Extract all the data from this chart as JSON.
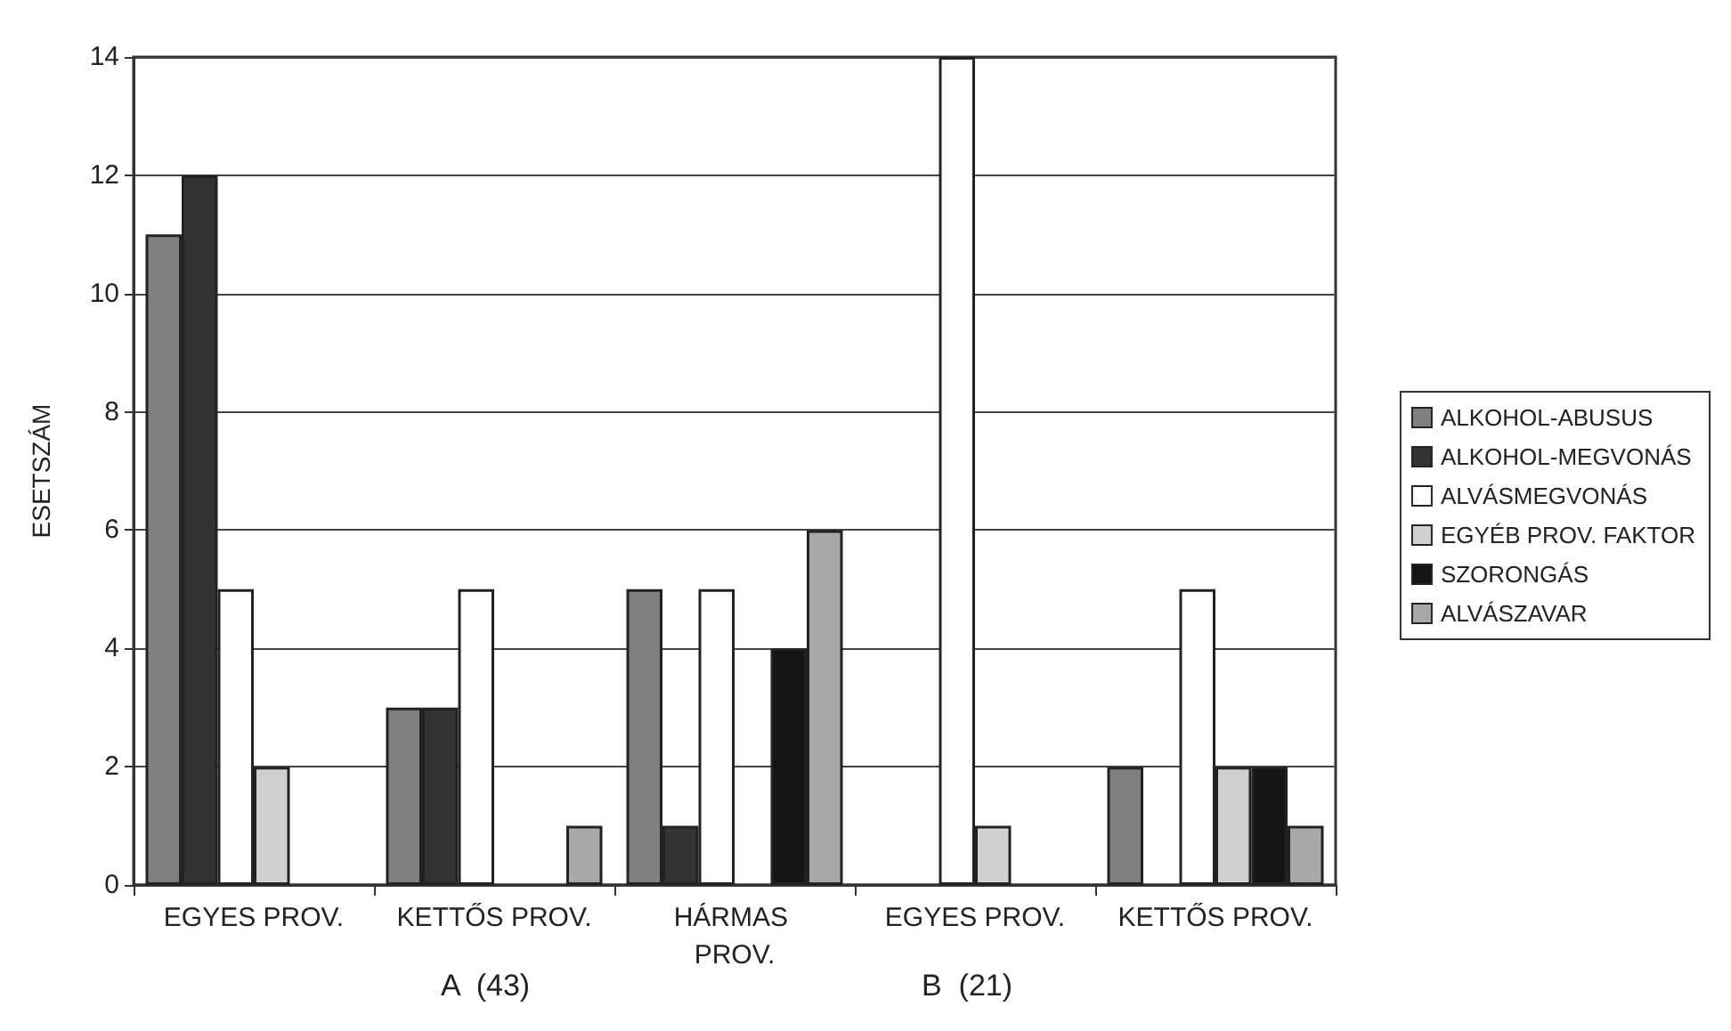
{
  "chart_data": {
    "type": "bar",
    "ylabel": "ESETSZÁM",
    "categories": [
      "EGYES PROV.",
      "KETTŐS PROV.",
      "HÁRMAS PROV.",
      "EGYES PROV.",
      "KETTŐS PROV."
    ],
    "series": [
      {
        "name": "ALKOHOL-ABUSUS",
        "color": "#808080",
        "values": [
          11,
          3,
          5,
          null,
          2
        ]
      },
      {
        "name": "ALKOHOL-MEGVONÁS",
        "color": "#333333",
        "values": [
          12,
          3,
          1,
          null,
          null
        ]
      },
      {
        "name": "ALVÁSMEGVONÁS",
        "color": "#ffffff",
        "values": [
          5,
          5,
          5,
          14,
          5
        ]
      },
      {
        "name": "EGYÉB PROV. FAKTOR",
        "color": "#d0d0d0",
        "values": [
          2,
          null,
          null,
          1,
          2
        ]
      },
      {
        "name": "SZORONGÁS",
        "color": "#151515",
        "values": [
          null,
          null,
          4,
          null,
          2
        ]
      },
      {
        "name": "ALVÁSZAVAR",
        "color": "#a8a8a8",
        "values": [
          null,
          1,
          6,
          null,
          1
        ]
      }
    ],
    "annotations": [
      "A  (43)",
      "B  (21)"
    ],
    "ylim": [
      0,
      14
    ],
    "yticks": [
      0,
      2,
      4,
      6,
      8,
      10,
      12,
      14
    ],
    "grid": "y",
    "legend": "right"
  }
}
